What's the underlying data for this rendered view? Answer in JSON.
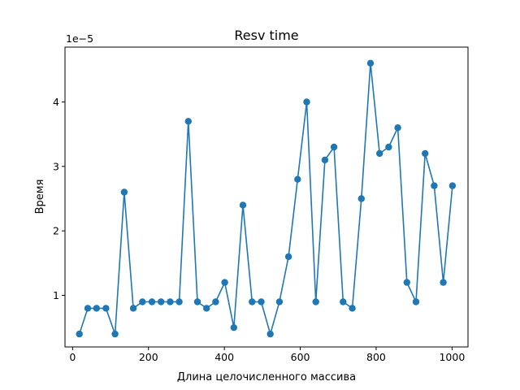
{
  "chart_data": {
    "type": "line",
    "title": "Resv time",
    "xlabel": "Длина целочисленного массива",
    "ylabel": "Время",
    "offset_text": "1e−5",
    "color": "#1f77b4",
    "xlim": [
      -20,
      1042
    ],
    "ylim": [
      2e-06,
      4.85e-05
    ],
    "xticks": [
      0,
      200,
      400,
      600,
      800,
      1000
    ],
    "yticks": [
      1e-05,
      2e-05,
      3e-05,
      4e-05
    ],
    "ytick_labels": [
      "1",
      "2",
      "3",
      "4"
    ],
    "grid": false,
    "legend": "none",
    "x": [
      18,
      40,
      63,
      88,
      112,
      136,
      160,
      184,
      209,
      233,
      257,
      281,
      305,
      329,
      353,
      377,
      401,
      425,
      449,
      473,
      497,
      521,
      545,
      569,
      593,
      617,
      641,
      665,
      689,
      713,
      737,
      761,
      785,
      809,
      833,
      857,
      881,
      905,
      929,
      953,
      977,
      1001
    ],
    "y": [
      4e-06,
      8e-06,
      8e-06,
      8e-06,
      4e-06,
      2.6e-05,
      8e-06,
      9e-06,
      9e-06,
      9e-06,
      9e-06,
      9e-06,
      3.7e-05,
      9e-06,
      8e-06,
      9e-06,
      1.2e-05,
      5e-06,
      2.4e-05,
      9e-06,
      9e-06,
      4e-06,
      9e-06,
      1.6e-05,
      2.8e-05,
      4e-05,
      9e-06,
      3.1e-05,
      3.3e-05,
      9e-06,
      8e-06,
      2.5e-05,
      4.6e-05,
      3.2e-05,
      3.3e-05,
      3.6e-05,
      1.2e-05,
      9e-06,
      3.2e-05,
      2.7e-05,
      1.2e-05,
      2.7e-05
    ]
  }
}
